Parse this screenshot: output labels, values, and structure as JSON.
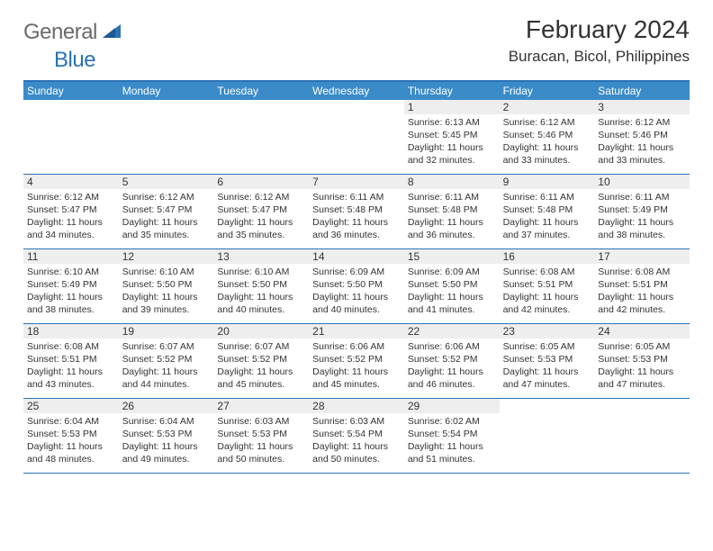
{
  "logo": {
    "text1": "General",
    "text2": "Blue"
  },
  "title": "February 2024",
  "location": "Buracan, Bicol, Philippines",
  "colors": {
    "header_bg": "#3b8bc9",
    "border": "#2a72b5",
    "daynum_bg": "#eeeeee",
    "text": "#333333",
    "logo_gray": "#6a6a6a",
    "logo_blue": "#2a72b5"
  },
  "dayHeaders": [
    "Sunday",
    "Monday",
    "Tuesday",
    "Wednesday",
    "Thursday",
    "Friday",
    "Saturday"
  ],
  "weeks": [
    [
      null,
      null,
      null,
      null,
      {
        "n": "1",
        "sunrise": "Sunrise: 6:13 AM",
        "sunset": "Sunset: 5:45 PM",
        "daylight": "Daylight: 11 hours and 32 minutes."
      },
      {
        "n": "2",
        "sunrise": "Sunrise: 6:12 AM",
        "sunset": "Sunset: 5:46 PM",
        "daylight": "Daylight: 11 hours and 33 minutes."
      },
      {
        "n": "3",
        "sunrise": "Sunrise: 6:12 AM",
        "sunset": "Sunset: 5:46 PM",
        "daylight": "Daylight: 11 hours and 33 minutes."
      }
    ],
    [
      {
        "n": "4",
        "sunrise": "Sunrise: 6:12 AM",
        "sunset": "Sunset: 5:47 PM",
        "daylight": "Daylight: 11 hours and 34 minutes."
      },
      {
        "n": "5",
        "sunrise": "Sunrise: 6:12 AM",
        "sunset": "Sunset: 5:47 PM",
        "daylight": "Daylight: 11 hours and 35 minutes."
      },
      {
        "n": "6",
        "sunrise": "Sunrise: 6:12 AM",
        "sunset": "Sunset: 5:47 PM",
        "daylight": "Daylight: 11 hours and 35 minutes."
      },
      {
        "n": "7",
        "sunrise": "Sunrise: 6:11 AM",
        "sunset": "Sunset: 5:48 PM",
        "daylight": "Daylight: 11 hours and 36 minutes."
      },
      {
        "n": "8",
        "sunrise": "Sunrise: 6:11 AM",
        "sunset": "Sunset: 5:48 PM",
        "daylight": "Daylight: 11 hours and 36 minutes."
      },
      {
        "n": "9",
        "sunrise": "Sunrise: 6:11 AM",
        "sunset": "Sunset: 5:48 PM",
        "daylight": "Daylight: 11 hours and 37 minutes."
      },
      {
        "n": "10",
        "sunrise": "Sunrise: 6:11 AM",
        "sunset": "Sunset: 5:49 PM",
        "daylight": "Daylight: 11 hours and 38 minutes."
      }
    ],
    [
      {
        "n": "11",
        "sunrise": "Sunrise: 6:10 AM",
        "sunset": "Sunset: 5:49 PM",
        "daylight": "Daylight: 11 hours and 38 minutes."
      },
      {
        "n": "12",
        "sunrise": "Sunrise: 6:10 AM",
        "sunset": "Sunset: 5:50 PM",
        "daylight": "Daylight: 11 hours and 39 minutes."
      },
      {
        "n": "13",
        "sunrise": "Sunrise: 6:10 AM",
        "sunset": "Sunset: 5:50 PM",
        "daylight": "Daylight: 11 hours and 40 minutes."
      },
      {
        "n": "14",
        "sunrise": "Sunrise: 6:09 AM",
        "sunset": "Sunset: 5:50 PM",
        "daylight": "Daylight: 11 hours and 40 minutes."
      },
      {
        "n": "15",
        "sunrise": "Sunrise: 6:09 AM",
        "sunset": "Sunset: 5:50 PM",
        "daylight": "Daylight: 11 hours and 41 minutes."
      },
      {
        "n": "16",
        "sunrise": "Sunrise: 6:08 AM",
        "sunset": "Sunset: 5:51 PM",
        "daylight": "Daylight: 11 hours and 42 minutes."
      },
      {
        "n": "17",
        "sunrise": "Sunrise: 6:08 AM",
        "sunset": "Sunset: 5:51 PM",
        "daylight": "Daylight: 11 hours and 42 minutes."
      }
    ],
    [
      {
        "n": "18",
        "sunrise": "Sunrise: 6:08 AM",
        "sunset": "Sunset: 5:51 PM",
        "daylight": "Daylight: 11 hours and 43 minutes."
      },
      {
        "n": "19",
        "sunrise": "Sunrise: 6:07 AM",
        "sunset": "Sunset: 5:52 PM",
        "daylight": "Daylight: 11 hours and 44 minutes."
      },
      {
        "n": "20",
        "sunrise": "Sunrise: 6:07 AM",
        "sunset": "Sunset: 5:52 PM",
        "daylight": "Daylight: 11 hours and 45 minutes."
      },
      {
        "n": "21",
        "sunrise": "Sunrise: 6:06 AM",
        "sunset": "Sunset: 5:52 PM",
        "daylight": "Daylight: 11 hours and 45 minutes."
      },
      {
        "n": "22",
        "sunrise": "Sunrise: 6:06 AM",
        "sunset": "Sunset: 5:52 PM",
        "daylight": "Daylight: 11 hours and 46 minutes."
      },
      {
        "n": "23",
        "sunrise": "Sunrise: 6:05 AM",
        "sunset": "Sunset: 5:53 PM",
        "daylight": "Daylight: 11 hours and 47 minutes."
      },
      {
        "n": "24",
        "sunrise": "Sunrise: 6:05 AM",
        "sunset": "Sunset: 5:53 PM",
        "daylight": "Daylight: 11 hours and 47 minutes."
      }
    ],
    [
      {
        "n": "25",
        "sunrise": "Sunrise: 6:04 AM",
        "sunset": "Sunset: 5:53 PM",
        "daylight": "Daylight: 11 hours and 48 minutes."
      },
      {
        "n": "26",
        "sunrise": "Sunrise: 6:04 AM",
        "sunset": "Sunset: 5:53 PM",
        "daylight": "Daylight: 11 hours and 49 minutes."
      },
      {
        "n": "27",
        "sunrise": "Sunrise: 6:03 AM",
        "sunset": "Sunset: 5:53 PM",
        "daylight": "Daylight: 11 hours and 50 minutes."
      },
      {
        "n": "28",
        "sunrise": "Sunrise: 6:03 AM",
        "sunset": "Sunset: 5:54 PM",
        "daylight": "Daylight: 11 hours and 50 minutes."
      },
      {
        "n": "29",
        "sunrise": "Sunrise: 6:02 AM",
        "sunset": "Sunset: 5:54 PM",
        "daylight": "Daylight: 11 hours and 51 minutes."
      },
      null,
      null
    ]
  ]
}
